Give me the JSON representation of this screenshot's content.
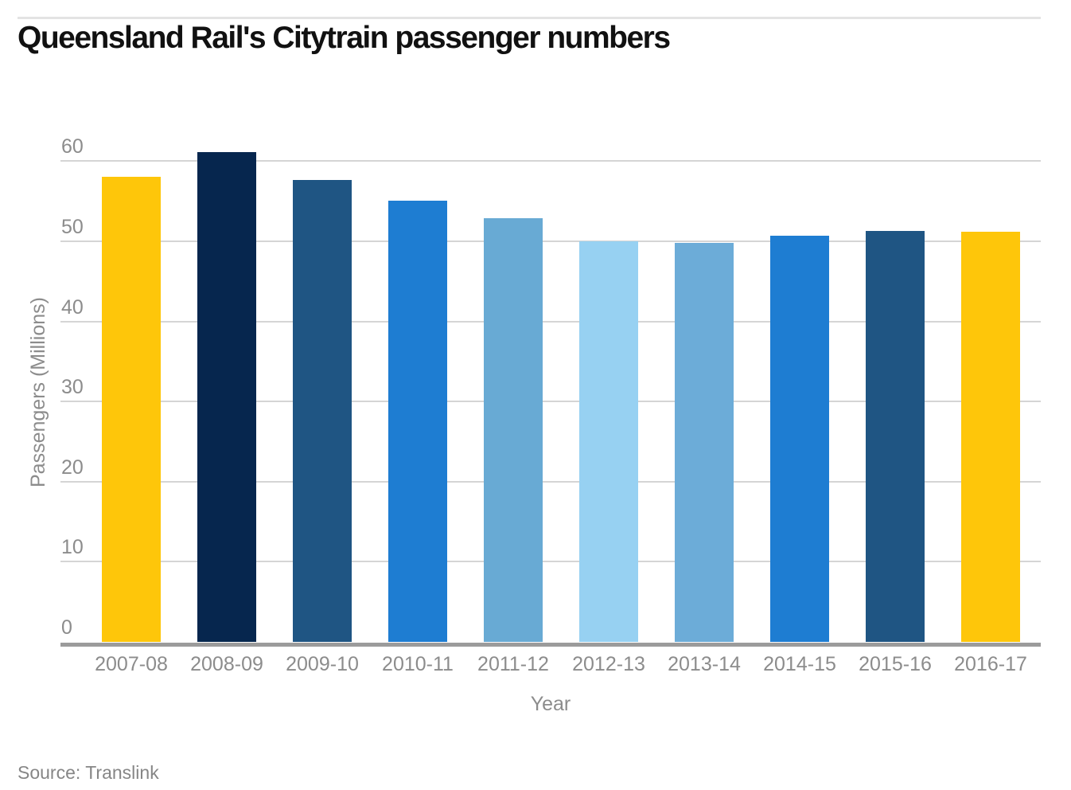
{
  "header": {
    "title": "Queensland Rail's Citytrain passenger numbers"
  },
  "footer": {
    "source": "Source: Translink"
  },
  "chart_data": {
    "type": "bar",
    "title": "Queensland Rail's Citytrain passenger numbers",
    "xlabel": "Year",
    "ylabel": "Passengers (Millions)",
    "categories": [
      "2007-08",
      "2008-09",
      "2009-10",
      "2010-11",
      "2011-12",
      "2012-13",
      "2013-14",
      "2014-15",
      "2015-16",
      "2016-17"
    ],
    "values": [
      58.1,
      61.1,
      57.7,
      55.1,
      52.9,
      50.0,
      49.8,
      50.7,
      51.3,
      51.2
    ],
    "bar_colors": [
      "#FEC60A",
      "#06264E",
      "#1F5583",
      "#1E7DD2",
      "#68AAD4",
      "#97D1F2",
      "#6CACD8",
      "#1E7DD2",
      "#1F5583",
      "#FEC60A"
    ],
    "ylim": [
      0,
      60
    ],
    "yticks": [
      0,
      10,
      20,
      30,
      40,
      50,
      60
    ],
    "grid": true,
    "legend": false,
    "source": "Translink",
    "colors": {
      "grid": "#D5D5D5",
      "axis_line": "#9B9B9B",
      "tick_text": "#8C8C8C",
      "title_text": "#111111",
      "top_rule": "#E3E3E3"
    }
  }
}
